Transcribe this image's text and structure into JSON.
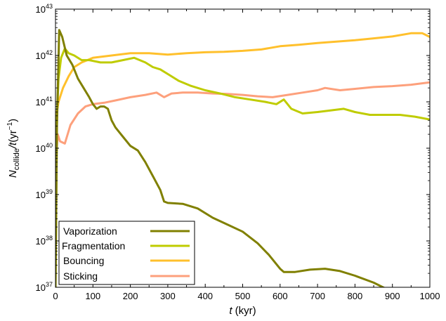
{
  "chart_data": {
    "type": "line",
    "xlabel_var": "t",
    "xlabel_unit": " (kyr)",
    "ylabel_var": "N",
    "ylabel_sub": "collide",
    "ylabel_mid": "/t",
    "ylabel_unit_a": "(yr",
    "ylabel_unit_sup": "−1",
    "ylabel_unit_b": ")",
    "xlim": [
      0,
      1000
    ],
    "ylim_log10": [
      37,
      43
    ],
    "yscale": "log",
    "x_ticks": [
      0,
      100,
      200,
      300,
      400,
      500,
      600,
      700,
      800,
      900,
      1000
    ],
    "y_ticks": [
      {
        "base": "10",
        "exp": "37",
        "value": 37
      },
      {
        "base": "10",
        "exp": "38",
        "value": 38
      },
      {
        "base": "10",
        "exp": "39",
        "value": 39
      },
      {
        "base": "10",
        "exp": "40",
        "value": 40
      },
      {
        "base": "10",
        "exp": "41",
        "value": 41
      },
      {
        "base": "10",
        "exp": "42",
        "value": 42
      },
      {
        "base": "10",
        "exp": "43",
        "value": 43
      }
    ],
    "grid": false,
    "legend_position": "bottom-left",
    "series": [
      {
        "name": "Vaporization",
        "color": "#808000",
        "points_log10": [
          [
            0,
            37.0
          ],
          [
            4,
            40.5
          ],
          [
            10,
            42.55
          ],
          [
            18,
            42.4
          ],
          [
            30,
            42.0
          ],
          [
            45,
            41.8
          ],
          [
            60,
            41.5
          ],
          [
            75,
            41.3
          ],
          [
            90,
            41.1
          ],
          [
            100,
            40.95
          ],
          [
            110,
            40.85
          ],
          [
            120,
            40.9
          ],
          [
            130,
            40.9
          ],
          [
            140,
            40.85
          ],
          [
            150,
            40.6
          ],
          [
            160,
            40.45
          ],
          [
            170,
            40.35
          ],
          [
            180,
            40.25
          ],
          [
            200,
            40.05
          ],
          [
            220,
            39.95
          ],
          [
            240,
            39.7
          ],
          [
            260,
            39.4
          ],
          [
            280,
            39.1
          ],
          [
            290,
            38.85
          ],
          [
            300,
            38.82
          ],
          [
            340,
            38.8
          ],
          [
            380,
            38.7
          ],
          [
            420,
            38.5
          ],
          [
            460,
            38.35
          ],
          [
            500,
            38.2
          ],
          [
            540,
            37.95
          ],
          [
            570,
            37.7
          ],
          [
            600,
            37.4
          ],
          [
            610,
            37.33
          ],
          [
            640,
            37.33
          ],
          [
            680,
            37.38
          ],
          [
            720,
            37.4
          ],
          [
            760,
            37.35
          ],
          [
            800,
            37.25
          ],
          [
            850,
            37.1
          ],
          [
            900,
            36.9
          ],
          [
            950,
            36.65
          ],
          [
            1000,
            36.38
          ]
        ]
      },
      {
        "name": "Fragmentation",
        "color": "#bfcc00",
        "points_log10": [
          [
            0,
            37.0
          ],
          [
            4,
            40.7
          ],
          [
            8,
            41.5
          ],
          [
            15,
            41.95
          ],
          [
            25,
            42.15
          ],
          [
            35,
            42.05
          ],
          [
            50,
            42.0
          ],
          [
            70,
            41.9
          ],
          [
            90,
            41.9
          ],
          [
            120,
            41.85
          ],
          [
            150,
            41.85
          ],
          [
            180,
            41.9
          ],
          [
            210,
            41.95
          ],
          [
            240,
            41.85
          ],
          [
            260,
            41.75
          ],
          [
            280,
            41.7
          ],
          [
            300,
            41.6
          ],
          [
            330,
            41.45
          ],
          [
            360,
            41.35
          ],
          [
            400,
            41.25
          ],
          [
            440,
            41.18
          ],
          [
            480,
            41.1
          ],
          [
            520,
            41.05
          ],
          [
            560,
            41.0
          ],
          [
            590,
            40.95
          ],
          [
            610,
            41.05
          ],
          [
            630,
            40.85
          ],
          [
            660,
            40.75
          ],
          [
            700,
            40.78
          ],
          [
            740,
            40.82
          ],
          [
            770,
            40.85
          ],
          [
            800,
            40.78
          ],
          [
            840,
            40.72
          ],
          [
            880,
            40.72
          ],
          [
            920,
            40.72
          ],
          [
            960,
            40.68
          ],
          [
            1000,
            40.62
          ]
        ]
      },
      {
        "name": "Bouncing",
        "color": "#ffc02c",
        "points_log10": [
          [
            0,
            40.6
          ],
          [
            8,
            41.0
          ],
          [
            20,
            41.3
          ],
          [
            35,
            41.55
          ],
          [
            50,
            41.75
          ],
          [
            70,
            41.85
          ],
          [
            100,
            41.95
          ],
          [
            150,
            42.0
          ],
          [
            200,
            42.05
          ],
          [
            250,
            42.05
          ],
          [
            300,
            42.02
          ],
          [
            350,
            42.05
          ],
          [
            400,
            42.07
          ],
          [
            450,
            42.08
          ],
          [
            500,
            42.1
          ],
          [
            550,
            42.13
          ],
          [
            600,
            42.2
          ],
          [
            650,
            42.23
          ],
          [
            700,
            42.27
          ],
          [
            750,
            42.3
          ],
          [
            800,
            42.33
          ],
          [
            850,
            42.37
          ],
          [
            900,
            42.41
          ],
          [
            950,
            42.48
          ],
          [
            980,
            42.48
          ],
          [
            1000,
            42.4
          ]
        ]
      },
      {
        "name": "Sticking",
        "color": "#fda07c",
        "points_log10": [
          [
            0,
            39.6
          ],
          [
            6,
            40.3
          ],
          [
            12,
            40.15
          ],
          [
            25,
            40.1
          ],
          [
            40,
            40.5
          ],
          [
            60,
            40.75
          ],
          [
            80,
            40.9
          ],
          [
            100,
            40.95
          ],
          [
            130,
            40.98
          ],
          [
            160,
            41.03
          ],
          [
            200,
            41.1
          ],
          [
            240,
            41.15
          ],
          [
            270,
            41.2
          ],
          [
            290,
            41.1
          ],
          [
            310,
            41.18
          ],
          [
            340,
            41.2
          ],
          [
            380,
            41.2
          ],
          [
            420,
            41.18
          ],
          [
            460,
            41.17
          ],
          [
            500,
            41.15
          ],
          [
            540,
            41.12
          ],
          [
            580,
            41.1
          ],
          [
            620,
            41.15
          ],
          [
            660,
            41.2
          ],
          [
            700,
            41.25
          ],
          [
            720,
            41.3
          ],
          [
            760,
            41.25
          ],
          [
            800,
            41.28
          ],
          [
            850,
            41.32
          ],
          [
            900,
            41.34
          ],
          [
            950,
            41.37
          ],
          [
            1000,
            41.42
          ]
        ]
      }
    ]
  }
}
